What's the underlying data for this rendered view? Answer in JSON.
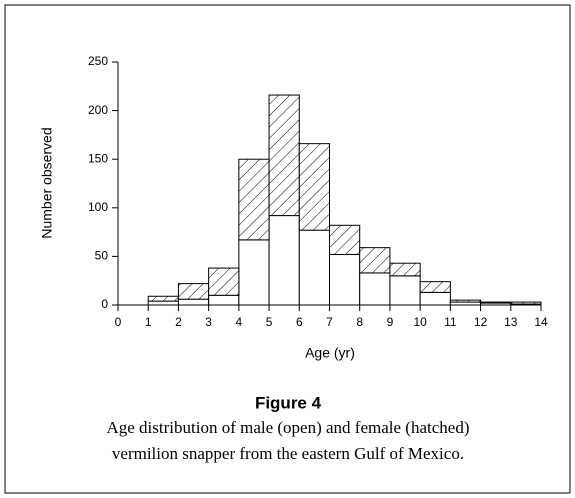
{
  "chart_data": {
    "type": "histogram",
    "title": "Figure 4",
    "caption": [
      "Age distribution of male (open) and female (hatched)",
      "vermilion snapper from the eastern Gulf of Mexico."
    ],
    "xlabel": "Age (yr)",
    "ylabel": "Number observed",
    "bins": [
      1,
      2,
      3,
      4,
      5,
      6,
      7,
      8,
      9,
      10,
      11,
      12,
      13,
      14
    ],
    "series": [
      {
        "color": "#ffffff",
        "values": [
          4,
          6,
          10,
          67,
          92,
          77,
          52,
          33,
          30,
          13,
          3,
          2,
          1
        ]
      },
      {
        "color": "#ffffff",
        "pattern": "hatch",
        "values": [
          5,
          16,
          28,
          83,
          124,
          89,
          30,
          26,
          13,
          11,
          2,
          1,
          2
        ]
      }
    ],
    "stacked": true,
    "xlim": [
      0,
      14
    ],
    "xticks": [
      0,
      1,
      2,
      3,
      4,
      5,
      6,
      7,
      8,
      9,
      10,
      11,
      12,
      13,
      14
    ],
    "ylim": [
      0,
      250
    ],
    "yticks": [
      0,
      50,
      100,
      150,
      200,
      250
    ]
  }
}
